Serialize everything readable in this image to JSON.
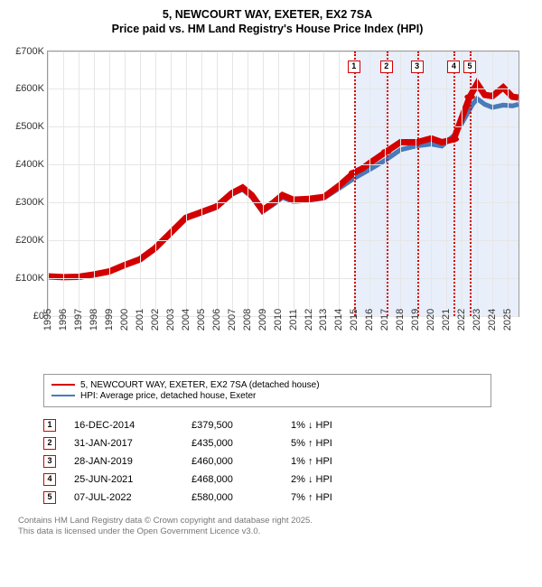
{
  "title": {
    "line1": "5, NEWCOURT WAY, EXETER, EX2 7SA",
    "line2": "Price paid vs. HM Land Registry's House Price Index (HPI)"
  },
  "chart": {
    "type": "line",
    "background_color": "#ffffff",
    "grid_color": "#e6e6e6",
    "border_color": "#999999",
    "y": {
      "min": 0,
      "max": 700000,
      "step": 100000,
      "labels": [
        "£0",
        "£100K",
        "£200K",
        "£300K",
        "£400K",
        "£500K",
        "£600K",
        "£700K"
      ]
    },
    "x": {
      "min": 1995,
      "max": 2025.7,
      "ticks": [
        1995,
        1996,
        1997,
        1998,
        1999,
        2000,
        2001,
        2002,
        2003,
        2004,
        2005,
        2006,
        2007,
        2008,
        2009,
        2010,
        2011,
        2012,
        2013,
        2014,
        2015,
        2016,
        2017,
        2018,
        2019,
        2020,
        2021,
        2022,
        2023,
        2024,
        2025
      ],
      "labels": [
        "1995",
        "1996",
        "1997",
        "1998",
        "1999",
        "2000",
        "2001",
        "2002",
        "2003",
        "2004",
        "2005",
        "2006",
        "2007",
        "2008",
        "2009",
        "2010",
        "2011",
        "2012",
        "2013",
        "2014",
        "2015",
        "2016",
        "2017",
        "2018",
        "2019",
        "2020",
        "2021",
        "2022",
        "2023",
        "2024",
        "2025"
      ]
    },
    "highlight_band": {
      "from": 2014.96,
      "to": 2025.7,
      "color": "#e8effa"
    },
    "series": [
      {
        "name": "property",
        "color": "#d40000",
        "width": 2,
        "points": [
          [
            1995,
            105000
          ],
          [
            1996,
            103000
          ],
          [
            1997,
            104000
          ],
          [
            1998,
            110000
          ],
          [
            1999,
            118000
          ],
          [
            2000,
            135000
          ],
          [
            2001,
            150000
          ],
          [
            2002,
            180000
          ],
          [
            2003,
            220000
          ],
          [
            2004,
            260000
          ],
          [
            2005,
            275000
          ],
          [
            2006,
            290000
          ],
          [
            2007,
            325000
          ],
          [
            2007.7,
            340000
          ],
          [
            2008.3,
            320000
          ],
          [
            2009,
            280000
          ],
          [
            2009.7,
            300000
          ],
          [
            2010.3,
            320000
          ],
          [
            2011,
            308000
          ],
          [
            2012,
            310000
          ],
          [
            2013,
            315000
          ],
          [
            2014,
            345000
          ],
          [
            2014.96,
            379500
          ],
          [
            2015.5,
            390000
          ],
          [
            2016,
            405000
          ],
          [
            2017.08,
            435000
          ],
          [
            2018,
            460000
          ],
          [
            2019.08,
            460000
          ],
          [
            2020,
            470000
          ],
          [
            2020.7,
            460000
          ],
          [
            2021.48,
            468000
          ],
          [
            2022,
            525000
          ],
          [
            2022.52,
            580000
          ],
          [
            2023,
            615000
          ],
          [
            2023.5,
            585000
          ],
          [
            2024,
            582000
          ],
          [
            2024.7,
            605000
          ],
          [
            2025.3,
            580000
          ],
          [
            2025.7,
            578000
          ]
        ]
      },
      {
        "name": "hpi",
        "color": "#4a7ab8",
        "width": 1.5,
        "points": [
          [
            1995,
            105000
          ],
          [
            1996,
            103000
          ],
          [
            1997,
            104000
          ],
          [
            1998,
            110000
          ],
          [
            1999,
            118000
          ],
          [
            2000,
            133000
          ],
          [
            2001,
            148000
          ],
          [
            2002,
            177000
          ],
          [
            2003,
            218000
          ],
          [
            2004,
            258000
          ],
          [
            2005,
            272000
          ],
          [
            2006,
            287000
          ],
          [
            2007,
            322000
          ],
          [
            2007.7,
            335000
          ],
          [
            2008.3,
            315000
          ],
          [
            2009,
            276000
          ],
          [
            2009.7,
            295000
          ],
          [
            2010.3,
            314000
          ],
          [
            2011,
            303000
          ],
          [
            2012,
            306000
          ],
          [
            2013,
            312000
          ],
          [
            2014,
            338000
          ],
          [
            2015,
            365000
          ],
          [
            2016,
            388000
          ],
          [
            2017,
            412000
          ],
          [
            2018,
            440000
          ],
          [
            2019,
            450000
          ],
          [
            2020,
            455000
          ],
          [
            2020.7,
            450000
          ],
          [
            2021.5,
            478000
          ],
          [
            2022,
            510000
          ],
          [
            2022.7,
            560000
          ],
          [
            2023,
            575000
          ],
          [
            2023.5,
            560000
          ],
          [
            2024,
            552000
          ],
          [
            2024.7,
            558000
          ],
          [
            2025.3,
            556000
          ],
          [
            2025.7,
            560000
          ]
        ]
      }
    ],
    "markers": [
      {
        "n": "1",
        "x": 2014.96,
        "color": "#d40000"
      },
      {
        "n": "2",
        "x": 2017.08,
        "color": "#d40000"
      },
      {
        "n": "3",
        "x": 2019.08,
        "color": "#d40000"
      },
      {
        "n": "4",
        "x": 2021.48,
        "color": "#d40000"
      },
      {
        "n": "5",
        "x": 2022.52,
        "color": "#d40000"
      }
    ]
  },
  "legend": [
    {
      "color": "#d40000",
      "label": "5, NEWCOURT WAY, EXETER, EX2 7SA (detached house)"
    },
    {
      "color": "#4a7ab8",
      "label": "HPI: Average price, detached house, Exeter"
    }
  ],
  "transactions": [
    {
      "n": "1",
      "color": "#d40000",
      "date": "16-DEC-2014",
      "price": "£379,500",
      "delta": "1% ↓ HPI"
    },
    {
      "n": "2",
      "color": "#d40000",
      "date": "31-JAN-2017",
      "price": "£435,000",
      "delta": "5% ↑ HPI"
    },
    {
      "n": "3",
      "color": "#d40000",
      "date": "28-JAN-2019",
      "price": "£460,000",
      "delta": "1% ↑ HPI"
    },
    {
      "n": "4",
      "color": "#d40000",
      "date": "25-JUN-2021",
      "price": "£468,000",
      "delta": "2% ↓ HPI"
    },
    {
      "n": "5",
      "color": "#d40000",
      "date": "07-JUL-2022",
      "price": "£580,000",
      "delta": "7% ↑ HPI"
    }
  ],
  "footer": {
    "line1": "Contains HM Land Registry data © Crown copyright and database right 2025.",
    "line2": "This data is licensed under the Open Government Licence v3.0."
  }
}
